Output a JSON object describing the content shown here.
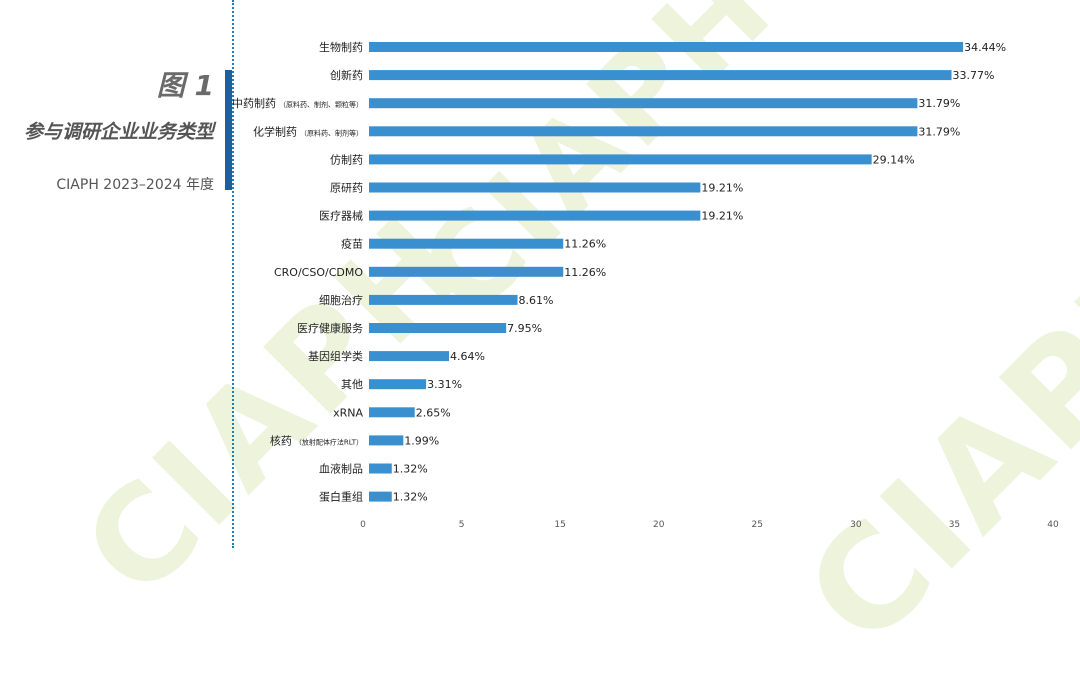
{
  "figure": {
    "number": "图 1",
    "title": "参与调研企业业务类型",
    "subtitle": "CIAPH 2023–2024 年度"
  },
  "watermark": "CIAPH",
  "colors": {
    "bar": "#3a8fcf",
    "accent": "#1f5f9b",
    "dotted": "#1f7fb0"
  },
  "chart_data": {
    "type": "bar",
    "orientation": "horizontal",
    "categories": [
      {
        "label": "生物制药",
        "note": ""
      },
      {
        "label": "创新药",
        "note": ""
      },
      {
        "label": "中药制药",
        "note": "（原料药、制剂、颗粒等）"
      },
      {
        "label": "化学制药",
        "note": "（原料药、制剂等）"
      },
      {
        "label": "仿制药",
        "note": ""
      },
      {
        "label": "原研药",
        "note": ""
      },
      {
        "label": "医疗器械",
        "note": ""
      },
      {
        "label": "疫苗",
        "note": ""
      },
      {
        "label": "CRO/CSO/CDMO",
        "note": ""
      },
      {
        "label": "细胞治疗",
        "note": ""
      },
      {
        "label": "医疗健康服务",
        "note": ""
      },
      {
        "label": "基因组学类",
        "note": ""
      },
      {
        "label": "其他",
        "note": ""
      },
      {
        "label": "xRNA",
        "note": ""
      },
      {
        "label": "核药",
        "note": "（放射配体疗法RLT）"
      },
      {
        "label": "血液制品",
        "note": ""
      },
      {
        "label": "蛋白重组",
        "note": ""
      }
    ],
    "values": [
      34.44,
      33.77,
      31.79,
      31.79,
      29.14,
      19.21,
      19.21,
      11.26,
      11.26,
      8.61,
      7.95,
      4.64,
      3.31,
      2.65,
      1.99,
      1.32,
      1.32
    ],
    "value_labels": [
      "34.44%",
      "33.77%",
      "31.79%",
      "31.79%",
      "29.14%",
      "19.21%",
      "19.21%",
      "11.26%",
      "11.26%",
      "8.61%",
      "7.95%",
      "4.64%",
      "3.31%",
      "2.65%",
      "1.99%",
      "1.32%",
      "1.32%"
    ],
    "xticks": [
      "0",
      "5",
      "15",
      "20",
      "25",
      "30",
      "35",
      "40"
    ],
    "xlim": [
      0,
      40
    ],
    "grid": false,
    "legend": "none"
  }
}
